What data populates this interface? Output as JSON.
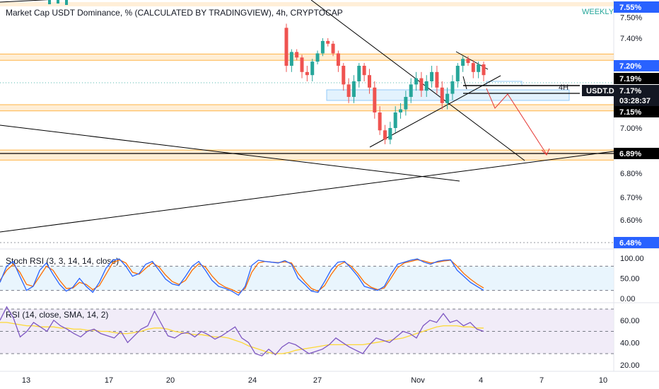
{
  "header": {
    "title": "Market Cap USDT Dominance, % (CALCULATED BY TRADINGVIEW), 4h, CRYPTOCAP",
    "timeframe_badge": "WEEKLY"
  },
  "colors": {
    "up": "#26a69a",
    "down": "#ef5350",
    "level_band": "#ffe0b2",
    "level_edge": "#ff9800",
    "stoch_k": "#2962ff",
    "stoch_d": "#ff6d00",
    "rsi": "#7e57c2",
    "rsi_ma": "#fdd835",
    "stoch_bg": "#e3f2fd",
    "rsi_bg": "#ede7f6",
    "badge_blue": "#2962ff"
  },
  "chart_data": [
    {
      "type": "candlestick",
      "title": "Market Cap USDT Dominance, % (CALCULATED BY TRADINGVIEW), 4h, CRYPTOCAP",
      "symbol": "USDT.D",
      "y_ticks": [
        "7.50%",
        "7.40%",
        "7.20%",
        "7.00%",
        "6.80%",
        "6.70%",
        "6.60%"
      ],
      "x_ticks": [
        "13",
        "17",
        "20",
        "24",
        "27",
        "Nov",
        "4",
        "7",
        "10"
      ],
      "ylim": [
        6.47,
        7.56
      ],
      "grid": false,
      "price_labels": [
        {
          "text": "7.55%",
          "style": "blue"
        },
        {
          "text": "7.20%",
          "style": "blue"
        },
        {
          "text": "7.19%",
          "style": "black"
        },
        {
          "text": "7.17%",
          "style": "dark"
        },
        {
          "text": "03:28:37",
          "style": "dark"
        },
        {
          "text": "7.15%",
          "style": "black"
        },
        {
          "text": "6.89%",
          "style": "black"
        },
        {
          "text": "6.48%",
          "style": "blue"
        }
      ],
      "annotations": [
        "4H",
        "USDT.D"
      ],
      "horizontal_levels": [
        7.55,
        7.285,
        7.24,
        7.2,
        7.19,
        7.165,
        7.15,
        7.065,
        6.895,
        6.865,
        6.48
      ],
      "candles_close": [
        7.2,
        7.3,
        7.26,
        7.18,
        7.17,
        7.23,
        7.29,
        7.38,
        7.36,
        7.29,
        7.2,
        7.14,
        7.1,
        7.15,
        7.2,
        7.17,
        7.13,
        7.05,
        6.99,
        6.95,
        7.0,
        7.05,
        7.06,
        7.1,
        7.14,
        7.16,
        7.12,
        7.15,
        7.18,
        7.13,
        7.08,
        7.11,
        7.15,
        7.2,
        7.25,
        7.22,
        7.18,
        7.21,
        7.17
      ]
    },
    {
      "type": "line",
      "title": "Stoch RSI (3, 3, 14, 14, close)",
      "y_ticks": [
        "100.00",
        "50.00",
        "0.00"
      ],
      "ylim": [
        0,
        100
      ],
      "bands": [
        80,
        20
      ],
      "series": [
        {
          "name": "K",
          "values": [
            40,
            80,
            92,
            55,
            20,
            30,
            70,
            88,
            60,
            35,
            18,
            28,
            50,
            30,
            15,
            40,
            75,
            95,
            98,
            80,
            55,
            62,
            85,
            92,
            70,
            48,
            36,
            32,
            55,
            80,
            92,
            70,
            45,
            30,
            25,
            18,
            8,
            30,
            82,
            95,
            92,
            90,
            88,
            94,
            85,
            50,
            35,
            18,
            15,
            42,
            72,
            90,
            92,
            75,
            55,
            30,
            25,
            20,
            30,
            60,
            85,
            90,
            95,
            98,
            90,
            85,
            92,
            95,
            96,
            70,
            55,
            40,
            30,
            20
          ]
        },
        {
          "name": "D",
          "values": [
            45,
            70,
            85,
            65,
            35,
            30,
            55,
            80,
            70,
            45,
            25,
            26,
            40,
            35,
            22,
            32,
            60,
            88,
            96,
            88,
            65,
            60,
            75,
            88,
            78,
            58,
            42,
            35,
            45,
            70,
            86,
            78,
            56,
            38,
            28,
            22,
            14,
            25,
            65,
            88,
            92,
            90,
            89,
            91,
            88,
            62,
            42,
            25,
            18,
            32,
            60,
            82,
            90,
            80,
            62,
            40,
            28,
            22,
            26,
            50,
            76,
            88,
            92,
            96,
            93,
            88,
            90,
            93,
            95,
            80,
            62,
            48,
            36,
            26
          ]
        }
      ]
    },
    {
      "type": "line",
      "title": "RSI (14, close, SMA, 14, 2)",
      "y_ticks": [
        "60.00",
        "40.00",
        "20.00"
      ],
      "ylim": [
        17,
        73
      ],
      "bands": [
        70,
        50,
        30
      ],
      "series": [
        {
          "name": "RSI",
          "values": [
            60,
            72,
            62,
            45,
            50,
            58,
            54,
            50,
            60,
            55,
            52,
            48,
            45,
            50,
            52,
            48,
            46,
            44,
            50,
            40,
            46,
            52,
            55,
            68,
            57,
            46,
            44,
            48,
            49,
            45,
            50,
            47,
            43,
            46,
            50,
            54,
            44,
            40,
            30,
            28,
            34,
            29,
            36,
            40,
            38,
            34,
            30,
            32,
            34,
            38,
            44,
            40,
            36,
            33,
            30,
            38,
            44,
            42,
            40,
            45,
            50,
            48,
            44,
            55,
            60,
            58,
            66,
            58,
            60,
            55,
            58,
            52,
            50
          ]
        },
        {
          "name": "SMA",
          "values": [
            58,
            58,
            57,
            56,
            55,
            55,
            54,
            54,
            54,
            53,
            53,
            52,
            52,
            51,
            51,
            50,
            50,
            49,
            48,
            48,
            49,
            50,
            52,
            53,
            53,
            52,
            50,
            49,
            48,
            47,
            47,
            46,
            45,
            45,
            44,
            42,
            40,
            37,
            35,
            33,
            31,
            30,
            30,
            31,
            33,
            34,
            35,
            36,
            37,
            38,
            38,
            38,
            38,
            38,
            38,
            39,
            40,
            41,
            42,
            43,
            44,
            46,
            48,
            50,
            52,
            54,
            55,
            55,
            55,
            54,
            54,
            53,
            53
          ]
        }
      ]
    }
  ]
}
